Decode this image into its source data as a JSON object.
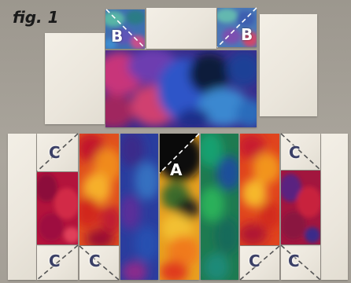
{
  "figure_label": "fig. 1",
  "labels": {
    "b_left": "B",
    "b_right": "B",
    "a_center": "A",
    "c_top_left": "C",
    "c_top_right": "C",
    "c_bottom_1": "C",
    "c_bottom_2": "C",
    "c_bottom_3": "C",
    "c_bottom_4": "C"
  },
  "colors": {
    "background": "#a39e95",
    "cream_fabric": "#f0ece3",
    "dashed_line_white": "#ffffff",
    "dashed_line_dark": "#555555",
    "label_white": "#ffffff",
    "label_dark": "#3a3f66"
  }
}
